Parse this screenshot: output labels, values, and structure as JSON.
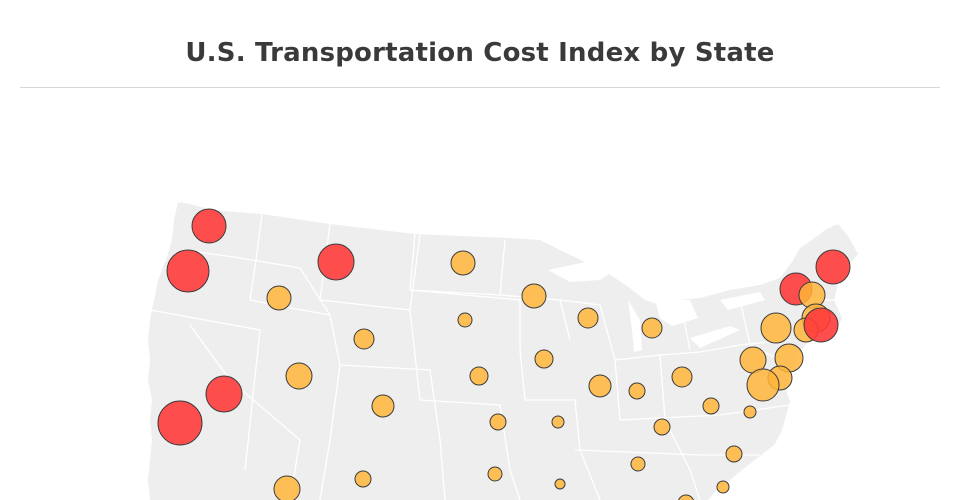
{
  "title": "U.S. Transportation Cost Index by State",
  "colors": {
    "land": "#eeeeee",
    "borders": "#ffffff",
    "high": "#ff3b3b",
    "medium": "#ffb53a",
    "outline": "#3b3b3b"
  },
  "bubbles": [
    {
      "state": "WA",
      "level": "high"
    },
    {
      "state": "OR",
      "level": "high"
    },
    {
      "state": "MT",
      "level": "high"
    },
    {
      "state": "ID",
      "level": "medium"
    },
    {
      "state": "ND",
      "level": "medium"
    },
    {
      "state": "SD",
      "level": "medium"
    },
    {
      "state": "MN",
      "level": "medium"
    },
    {
      "state": "WI",
      "level": "medium"
    },
    {
      "state": "MI",
      "level": "medium"
    },
    {
      "state": "WY",
      "level": "medium"
    },
    {
      "state": "NV",
      "level": "high"
    },
    {
      "state": "CA",
      "level": "high"
    },
    {
      "state": "UT",
      "level": "medium"
    },
    {
      "state": "CO",
      "level": "medium"
    },
    {
      "state": "NE",
      "level": "medium"
    },
    {
      "state": "IA",
      "level": "medium"
    },
    {
      "state": "IL",
      "level": "medium"
    },
    {
      "state": "IN",
      "level": "medium"
    },
    {
      "state": "OH",
      "level": "medium"
    },
    {
      "state": "KS",
      "level": "medium"
    },
    {
      "state": "MO",
      "level": "medium"
    },
    {
      "state": "KY",
      "level": "medium"
    },
    {
      "state": "WV",
      "level": "medium"
    },
    {
      "state": "VA",
      "level": "medium"
    },
    {
      "state": "PA",
      "level": "medium"
    },
    {
      "state": "NJ",
      "level": "medium"
    },
    {
      "state": "MD",
      "level": "medium"
    },
    {
      "state": "DE",
      "level": "medium"
    },
    {
      "state": "NY",
      "level": "medium"
    },
    {
      "state": "VT",
      "level": "high"
    },
    {
      "state": "NH",
      "level": "medium"
    },
    {
      "state": "MA",
      "level": "medium"
    },
    {
      "state": "CT",
      "level": "medium"
    },
    {
      "state": "RI",
      "level": "high"
    },
    {
      "state": "ME",
      "level": "high"
    },
    {
      "state": "TN",
      "level": "medium"
    },
    {
      "state": "NC",
      "level": "medium"
    },
    {
      "state": "SC",
      "level": "medium"
    },
    {
      "state": "GA",
      "level": "medium"
    },
    {
      "state": "AR",
      "level": "medium"
    },
    {
      "state": "OK",
      "level": "medium"
    },
    {
      "state": "NM",
      "level": "medium"
    },
    {
      "state": "AZ",
      "level": "medium"
    }
  ]
}
